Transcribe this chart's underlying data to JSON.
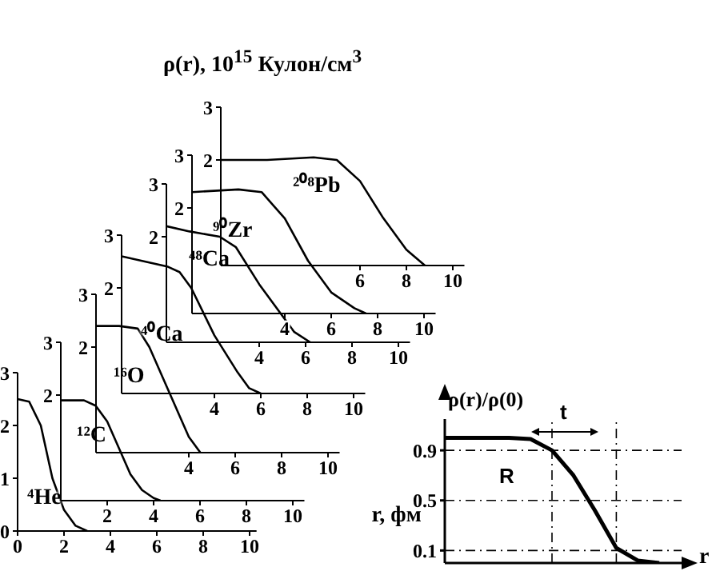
{
  "chart_data": [
    {
      "type": "line",
      "x": [
        0,
        0.5,
        1,
        1.5,
        2,
        2.5,
        3
      ],
      "series": [
        {
          "name": "⁴He",
          "color": "#000000",
          "values": [
            2.5,
            2.45,
            2.0,
            1.0,
            0.4,
            0.1,
            0
          ]
        }
      ],
      "xlim": [
        0,
        10.3
      ],
      "xticks": [
        0,
        2,
        4,
        6,
        8,
        10
      ],
      "ylim": [
        0,
        3
      ],
      "yticks": [
        0,
        1,
        2,
        3
      ],
      "marker": "none"
    },
    {
      "type": "line",
      "xlabel": "r, фм",
      "x": [
        0,
        1,
        1.5,
        2,
        2.5,
        3,
        3.5,
        4,
        4.3
      ],
      "series": [
        {
          "name": "¹²C",
          "color": "#000000",
          "values": [
            1.9,
            1.9,
            1.8,
            1.5,
            1.0,
            0.5,
            0.2,
            0.05,
            0
          ]
        }
      ],
      "xlim": [
        0,
        10.5
      ],
      "xticks": [
        2,
        4,
        6,
        8,
        10
      ],
      "ylim": [
        0,
        3
      ],
      "yticks": [
        2,
        3
      ],
      "marker": "none"
    },
    {
      "type": "line",
      "x": [
        0,
        1,
        1.8,
        2.3,
        3,
        3.5,
        4,
        4.5
      ],
      "series": [
        {
          "name": "¹⁶O",
          "color": "#000000",
          "values": [
            2.4,
            2.4,
            2.35,
            2.0,
            1.3,
            0.8,
            0.3,
            0
          ]
        }
      ],
      "xlim": [
        0,
        10.5
      ],
      "xticks": [
        4,
        6,
        8,
        10
      ],
      "ylim": [
        0,
        3
      ],
      "yticks": [
        2,
        3
      ],
      "marker": "none"
    },
    {
      "type": "line",
      "x": [
        0,
        1,
        2,
        2.5,
        3,
        4,
        5,
        5.5,
        6
      ],
      "series": [
        {
          "name": "⁴⁰Ca",
          "color": "#000000",
          "values": [
            2.6,
            2.5,
            2.4,
            2.3,
            2.0,
            1.1,
            0.4,
            0.1,
            0
          ]
        }
      ],
      "xlim": [
        0,
        10.5
      ],
      "xticks": [
        4,
        6,
        8,
        10
      ],
      "ylim": [
        0,
        3
      ],
      "yticks": [
        2,
        3
      ],
      "marker": "none"
    },
    {
      "type": "line",
      "x": [
        0,
        1,
        2.3,
        3,
        4,
        5,
        5.5,
        6.2
      ],
      "series": [
        {
          "name": "⁴⁸Ca",
          "color": "#000000",
          "values": [
            2.2,
            2.1,
            2.0,
            1.8,
            1.1,
            0.5,
            0.2,
            0
          ]
        }
      ],
      "xlim": [
        0,
        10.5
      ],
      "xticks": [
        4,
        6,
        8,
        10
      ],
      "ylim": [
        0,
        3
      ],
      "yticks": [
        2,
        3
      ],
      "marker": "none"
    },
    {
      "type": "line",
      "x": [
        0,
        2,
        3,
        4,
        5,
        6,
        7,
        7.5
      ],
      "series": [
        {
          "name": "⁹⁰Zr",
          "color": "#000000",
          "values": [
            2.3,
            2.35,
            2.3,
            1.8,
            1.0,
            0.4,
            0.1,
            0
          ]
        }
      ],
      "xlim": [
        0,
        10.5
      ],
      "xticks": [
        4,
        6,
        8,
        10
      ],
      "ylim": [
        0,
        3
      ],
      "yticks": [
        2,
        3
      ],
      "marker": "none"
    },
    {
      "type": "line",
      "ylabel": "ρ(r), 10$^{15}$ Кулон/см$^{3}$",
      "x": [
        0,
        2,
        4,
        5,
        6,
        7,
        8,
        8.8
      ],
      "series": [
        {
          "name": "²⁰⁸Pb",
          "color": "#000000",
          "values": [
            2.0,
            2.0,
            2.05,
            2.0,
            1.6,
            0.9,
            0.3,
            0
          ]
        }
      ],
      "xlim": [
        0,
        10.5
      ],
      "xticks": [
        6,
        8,
        10
      ],
      "ylim": [
        0,
        3
      ],
      "yticks": [
        2,
        3
      ],
      "marker": "none"
    },
    {
      "type": "line",
      "ylabel": "ρ(r)/ρ(0)",
      "xlabel": "r",
      "categories": [
        null,
        null,
        null,
        null,
        null,
        null,
        null,
        null,
        null,
        null,
        null
      ],
      "series": [
        {
          "color": "#000000",
          "values": [
            1.0,
            1.0,
            1.0,
            1.0,
            0.99,
            0.9,
            0.7,
            0.42,
            0.12,
            0.02,
            0
          ]
        }
      ],
      "ylim": [
        0,
        1.15
      ],
      "yticks": [
        0.1,
        0.5,
        0.9
      ],
      "tick_labels": "y",
      "marker": "none",
      "ref_lines": [
        {
          "axis": "y",
          "value": 0.9,
          "line_style": "dashed"
        },
        {
          "axis": "y",
          "value": 0.5,
          "line_style": "dashed"
        },
        {
          "axis": "y",
          "value": 0.1,
          "line_style": "dashed"
        }
      ],
      "annotations": [
        "t",
        "R"
      ]
    }
  ]
}
